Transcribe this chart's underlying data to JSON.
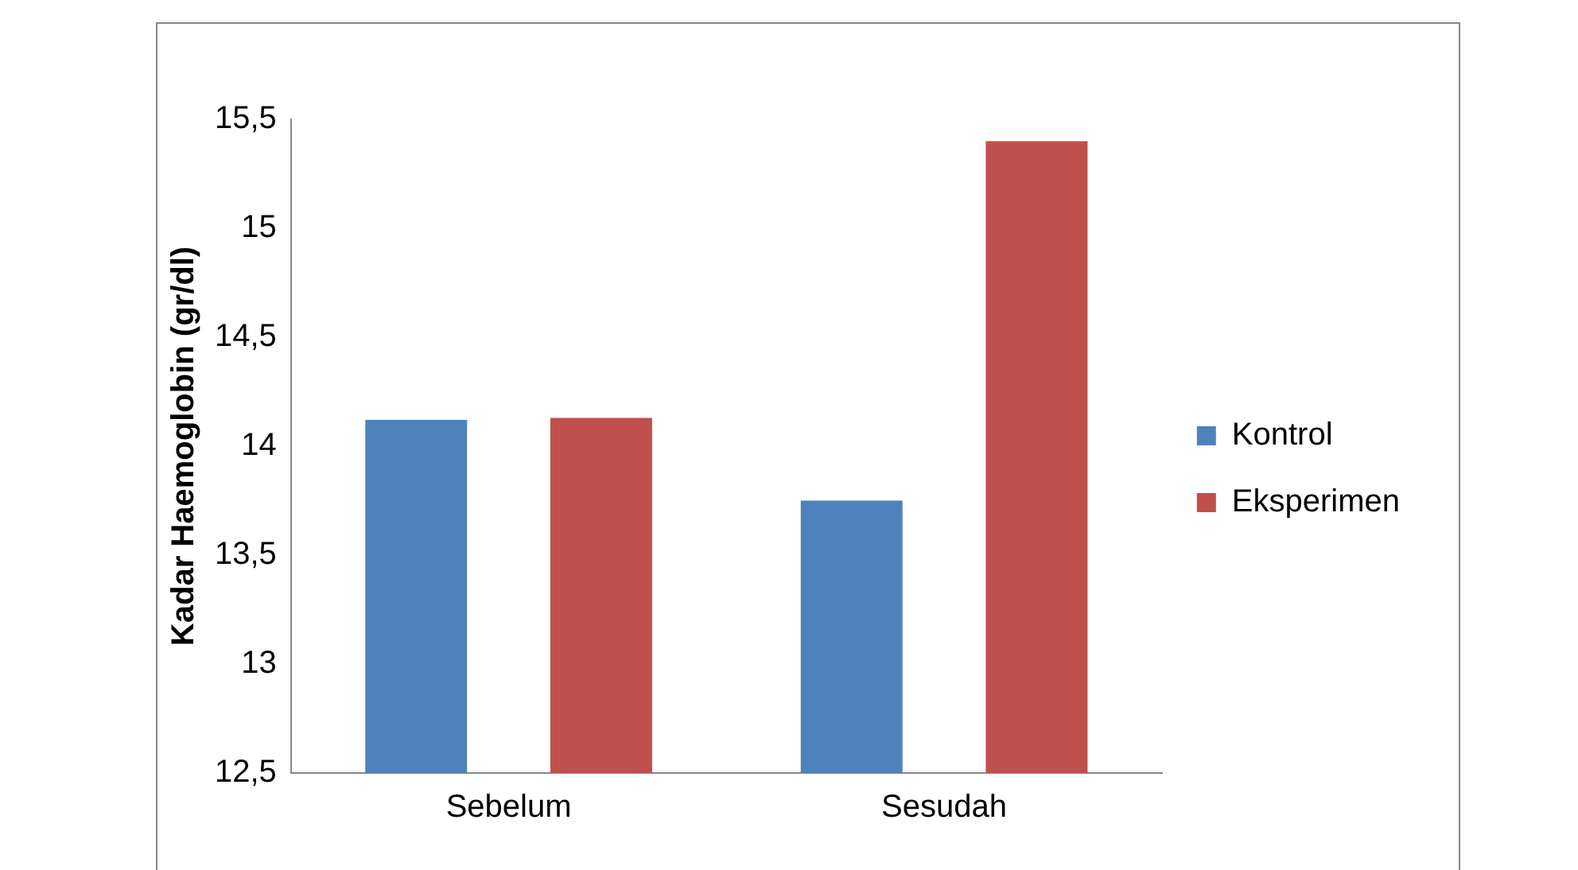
{
  "chart_data": {
    "type": "bar",
    "ylabel": "Kadar Haemoglobin (gr/dl)",
    "categories": [
      "Sebelum",
      "Sesudah"
    ],
    "series": [
      {
        "name": "Kontrol",
        "color": "#4f81bd",
        "values": [
          14.12,
          13.75
        ]
      },
      {
        "name": "Eksperimen",
        "color": "#c0504d",
        "values": [
          14.13,
          15.4
        ]
      }
    ],
    "ylim": [
      12.5,
      15.5
    ],
    "yticks": [
      {
        "value": 12.5,
        "label": "12,5"
      },
      {
        "value": 13,
        "label": "13"
      },
      {
        "value": 13.5,
        "label": "13,5"
      },
      {
        "value": 14,
        "label": "14"
      },
      {
        "value": 14.5,
        "label": "14,5"
      },
      {
        "value": 15,
        "label": "15"
      },
      {
        "value": 15.5,
        "label": "15,5"
      }
    ],
    "legend": "right"
  }
}
